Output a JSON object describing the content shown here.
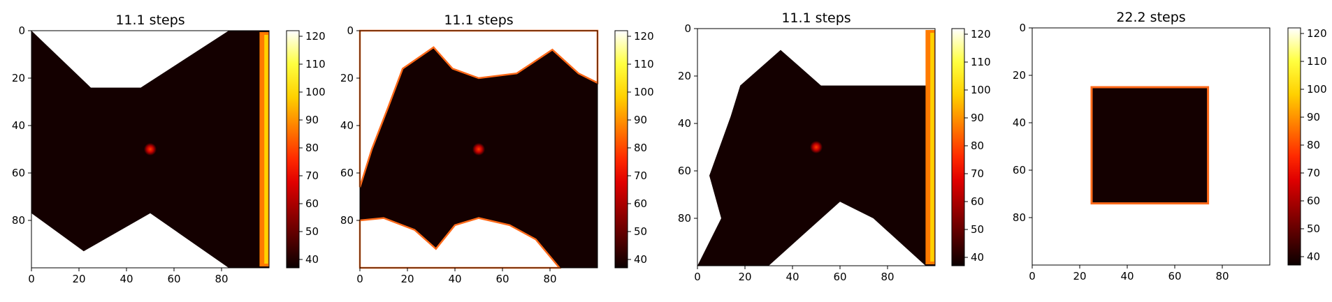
{
  "chart_data": [
    {
      "type": "heatmap",
      "title": "11.1 steps",
      "xlabel": "",
      "ylabel": "",
      "x_ticks": [
        0,
        20,
        40,
        60,
        80
      ],
      "y_ticks": [
        0,
        20,
        40,
        60,
        80
      ],
      "grid_size": 100,
      "colormap": "hot",
      "colorbar_range": [
        37,
        122
      ],
      "colorbar_ticks": [
        40,
        50,
        60,
        70,
        80,
        90,
        100,
        110,
        120
      ],
      "source_point": [
        50,
        50
      ],
      "regions": [
        {
          "kind": "white_polygon",
          "points": [
            [
              0,
              0
            ],
            [
              83,
              0
            ],
            [
              46,
              24
            ],
            [
              25,
              24
            ]
          ]
        },
        {
          "kind": "white_polygon",
          "points": [
            [
              0,
              100
            ],
            [
              0,
              77
            ],
            [
              22,
              93
            ],
            [
              50,
              77
            ],
            [
              83,
              100
            ]
          ]
        },
        {
          "kind": "front_right",
          "x": 96
        }
      ]
    },
    {
      "type": "heatmap",
      "title": "11.1 steps",
      "xlabel": "",
      "ylabel": "",
      "x_ticks": [
        0,
        20,
        40,
        60,
        80
      ],
      "y_ticks": [
        0,
        20,
        40,
        60,
        80
      ],
      "grid_size": 100,
      "colormap": "hot",
      "colorbar_range": [
        37,
        122
      ],
      "colorbar_ticks": [
        40,
        50,
        60,
        70,
        80,
        90,
        100,
        110,
        120
      ],
      "source_point": [
        50,
        50
      ],
      "regions": [
        {
          "kind": "white_top_curve",
          "points": [
            [
              0,
              0
            ],
            [
              100,
              0
            ],
            [
              100,
              22
            ],
            [
              92,
              18
            ],
            [
              81,
              8
            ],
            [
              66,
              18
            ],
            [
              50,
              20
            ],
            [
              39,
              16
            ],
            [
              31,
              7
            ],
            [
              18,
              16
            ],
            [
              12,
              32
            ],
            [
              5,
              50
            ],
            [
              0,
              66
            ]
          ]
        },
        {
          "kind": "white_bottom_curve",
          "points": [
            [
              0,
              100
            ],
            [
              0,
              80
            ],
            [
              10,
              79
            ],
            [
              23,
              84
            ],
            [
              32,
              92
            ],
            [
              40,
              82
            ],
            [
              50,
              79
            ],
            [
              63,
              82
            ],
            [
              74,
              88
            ],
            [
              84,
              100
            ]
          ]
        }
      ]
    },
    {
      "type": "heatmap",
      "title": "11.1 steps",
      "xlabel": "",
      "ylabel": "",
      "x_ticks": [
        0,
        20,
        40,
        60,
        80
      ],
      "y_ticks": [
        0,
        20,
        40,
        60,
        80
      ],
      "grid_size": 100,
      "colormap": "hot",
      "colorbar_range": [
        37,
        122
      ],
      "colorbar_ticks": [
        40,
        50,
        60,
        70,
        80,
        90,
        100,
        110,
        120
      ],
      "source_point": [
        50,
        50
      ],
      "regions": [
        {
          "kind": "white_polygon",
          "points": [
            [
              0,
              0
            ],
            [
              100,
              0
            ],
            [
              100,
              24
            ],
            [
              52,
              24
            ],
            [
              35,
              9
            ],
            [
              18,
              24
            ],
            [
              14,
              37
            ],
            [
              5,
              62
            ],
            [
              10,
              80
            ],
            [
              0,
              100
            ]
          ]
        },
        {
          "kind": "white_polygon",
          "points": [
            [
              30,
              100
            ],
            [
              60,
              73
            ],
            [
              74,
              80
            ],
            [
              96,
              100
            ]
          ]
        },
        {
          "kind": "front_right",
          "x": 96
        }
      ]
    },
    {
      "type": "heatmap",
      "title": "22.2 steps",
      "xlabel": "",
      "ylabel": "",
      "x_ticks": [
        0,
        20,
        40,
        60,
        80
      ],
      "y_ticks": [
        0,
        20,
        40,
        60,
        80
      ],
      "grid_size": 100,
      "colormap": "hot",
      "colorbar_range": [
        37,
        122
      ],
      "colorbar_ticks": [
        40,
        50,
        60,
        70,
        80,
        90,
        100,
        110,
        120
      ],
      "square": [
        25,
        25,
        74,
        74
      ]
    }
  ]
}
